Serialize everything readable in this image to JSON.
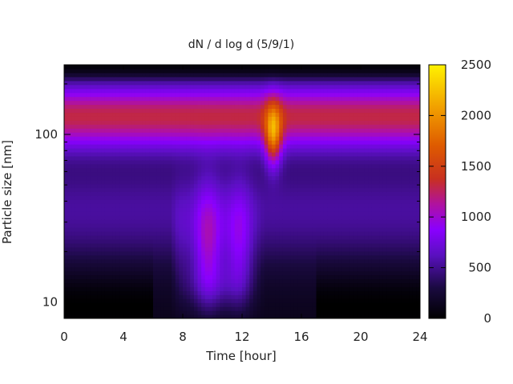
{
  "chart_data": {
    "type": "heatmap",
    "title": "dN / d log d (5/9/1)",
    "xlabel": "Time [hour]",
    "ylabel": "Particle size [nm]",
    "xlim": [
      0,
      24
    ],
    "ylim_nm": [
      8,
      260
    ],
    "y_scale": "log",
    "x_ticks": [
      "0",
      "4",
      "8",
      "12",
      "16",
      "20",
      "24"
    ],
    "y_ticks": [
      {
        "value": 10,
        "label": "10"
      },
      {
        "value": 100,
        "label": "100"
      }
    ],
    "colorbar": {
      "range": [
        0,
        2500
      ],
      "ticks": [
        "0",
        "500",
        "1000",
        "1500",
        "2000",
        "2500"
      ],
      "colormap": "gnuplot (black-purple-red-orange-yellow)"
    },
    "features": {
      "main_mode_peak_nm": 130,
      "background_mode_level": 1150,
      "nucleation_event_hours": [
        7.2,
        13.5
      ],
      "max_intensity_time_hour": 14.1,
      "max_intensity_size_nm": 100,
      "max_intensity_value": 2300
    }
  }
}
